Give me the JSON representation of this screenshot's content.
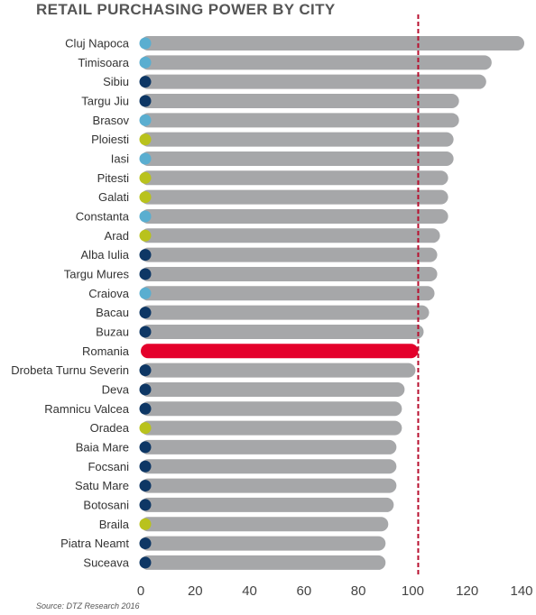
{
  "title": "RETAIL PURCHASING POWER BY CITY",
  "source": "Source: DTZ Research 2016",
  "colors": {
    "bar": "#a6a7a9",
    "highlight": "#e4002b",
    "reference_line": "#b8102f",
    "dark_blue": "#0e3765",
    "light_blue": "#5aaed0",
    "yellow_green": "#b9c21d"
  },
  "chart_data": {
    "type": "bar",
    "orientation": "horizontal",
    "title": "RETAIL PURCHASING POWER BY CITY",
    "xlabel": "",
    "ylabel": "",
    "xlim": [
      0,
      140
    ],
    "x_ticks": [
      0,
      20,
      40,
      60,
      80,
      100,
      120,
      140
    ],
    "reference_line": 102,
    "grid": false,
    "categories": [
      "Cluj Napoca",
      "Timisoara",
      "Sibiu",
      "Targu Jiu",
      "Brasov",
      "Ploiesti",
      "Iasi",
      "Pitesti",
      "Galati",
      "Constanta",
      "Arad",
      "Alba Iulia",
      "Targu Mures",
      "Craiova",
      "Bacau",
      "Buzau",
      "Romania",
      "Drobeta Turnu Severin",
      "Deva",
      "Ramnicu Valcea",
      "Oradea",
      "Baia Mare",
      "Focsani",
      "Satu Mare",
      "Botosani",
      "Braila",
      "Piatra Neamt",
      "Suceava"
    ],
    "values": [
      141,
      129,
      127,
      117,
      117,
      115,
      115,
      113,
      113,
      113,
      110,
      109,
      109,
      108,
      106,
      104,
      102,
      101,
      97,
      96,
      96,
      94,
      94,
      94,
      93,
      91,
      90,
      90
    ],
    "marker_colors": [
      "light_blue",
      "light_blue",
      "dark_blue",
      "dark_blue",
      "light_blue",
      "yellow_green",
      "light_blue",
      "yellow_green",
      "yellow_green",
      "light_blue",
      "yellow_green",
      "dark_blue",
      "dark_blue",
      "light_blue",
      "dark_blue",
      "dark_blue",
      "none",
      "dark_blue",
      "dark_blue",
      "dark_blue",
      "yellow_green",
      "dark_blue",
      "dark_blue",
      "dark_blue",
      "dark_blue",
      "yellow_green",
      "dark_blue",
      "dark_blue"
    ],
    "highlight_category": "Romania"
  }
}
